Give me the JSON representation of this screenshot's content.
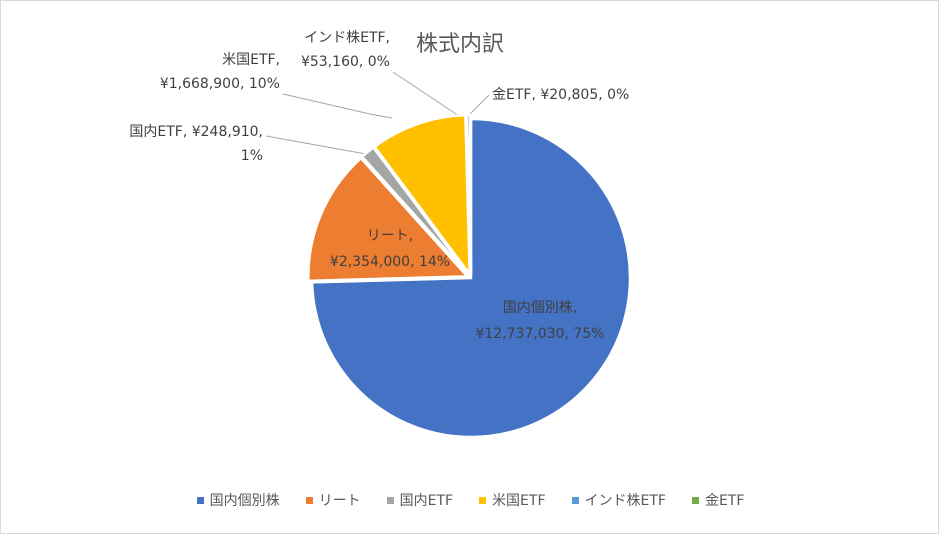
{
  "chart_data": {
    "type": "pie",
    "title": "株式内訳",
    "categories": [
      "国内個別株",
      "リート",
      "国内ETF",
      "米国ETF",
      "インド株ETF",
      "金ETF"
    ],
    "values": [
      12737030,
      2354000,
      248910,
      1668900,
      53160,
      20805
    ],
    "colors": [
      "#4472C4",
      "#ED7D31",
      "#A5A5A5",
      "#FFC000",
      "#5B9BD5",
      "#70AD47"
    ],
    "data_labels": [
      [
        "国内個別株,",
        "¥12,737,030, 75%"
      ],
      [
        "リート,",
        "¥2,354,000, 14%"
      ],
      [
        "国内ETF, ¥248,910,",
        "1%"
      ],
      [
        "米国ETF,",
        "¥1,668,900, 10%"
      ],
      [
        "インド株ETF,",
        "¥53,160, 0%"
      ],
      [
        "金ETF, ¥20,805, 0%"
      ]
    ],
    "legend_position": "bottom"
  }
}
